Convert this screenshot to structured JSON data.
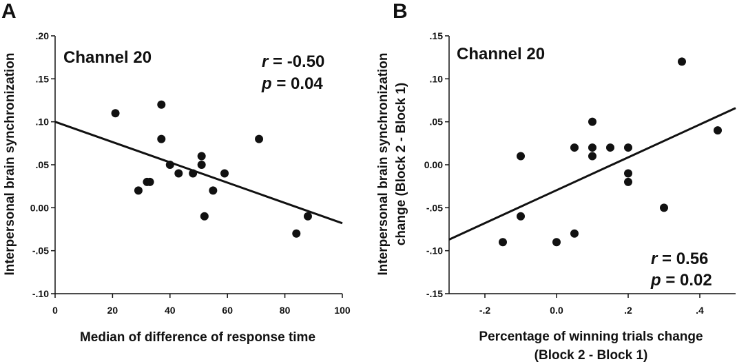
{
  "chart_data": [
    {
      "type": "scatter",
      "panel": "A",
      "title": "",
      "annotation": "Channel 20",
      "stat_r_label": "r",
      "stat_r_value": " = -0.50",
      "stat_p_label": "p",
      "stat_p_value": " = 0.04",
      "xlabel": "Median of difference of response time",
      "ylabel": "Interpersonal brain synchronization",
      "xlim": [
        0,
        100
      ],
      "ylim": [
        -0.1,
        0.2
      ],
      "x_ticks": [
        0,
        20,
        40,
        60,
        80,
        100
      ],
      "x_tick_labels": [
        "0",
        "20",
        "40",
        "60",
        "80",
        "100"
      ],
      "y_ticks": [
        -0.1,
        -0.05,
        0.0,
        0.05,
        0.1,
        0.15,
        0.2
      ],
      "y_tick_labels": [
        "-.10",
        "-.05",
        "0.00",
        ".05",
        ".10",
        ".15",
        ".20"
      ],
      "grid": false,
      "points": {
        "x": [
          21,
          29,
          32,
          33,
          37,
          37,
          40,
          43,
          48,
          51,
          51,
          52,
          55,
          59,
          71,
          84,
          88
        ],
        "y": [
          0.11,
          0.02,
          0.03,
          0.03,
          0.12,
          0.08,
          0.05,
          0.04,
          0.04,
          0.06,
          0.05,
          -0.01,
          0.02,
          0.04,
          0.08,
          -0.03,
          -0.01
        ]
      },
      "regression_line": {
        "x": [
          0,
          100
        ],
        "y": [
          0.1,
          -0.018
        ]
      }
    },
    {
      "type": "scatter",
      "panel": "B",
      "title": "",
      "annotation": "Channel 20",
      "stat_r_label": "r",
      "stat_r_value": " = 0.56",
      "stat_p_label": "p",
      "stat_p_value": " = 0.02",
      "xlabel_line1": "Percentage of winning trials change",
      "xlabel_line2": "(Block 2 - Block 1)",
      "ylabel_line1": "Interpersonal brain synchronization",
      "ylabel_line2": "change (Block 2 - Block 1)",
      "xlim": [
        -0.3,
        0.5
      ],
      "ylim": [
        -0.15,
        0.15
      ],
      "x_ticks": [
        -0.2,
        0.0,
        0.2,
        0.4
      ],
      "x_tick_labels": [
        "-.2",
        "0.0",
        ".2",
        ".4"
      ],
      "y_ticks": [
        -0.15,
        -0.1,
        -0.05,
        0.0,
        0.05,
        0.1,
        0.15
      ],
      "y_tick_labels": [
        "-.15",
        "-.10",
        "-.05",
        "0.00",
        ".05",
        ".10",
        ".15"
      ],
      "grid": false,
      "points": {
        "x": [
          -0.15,
          -0.1,
          -0.1,
          0.0,
          0.05,
          0.05,
          0.1,
          0.1,
          0.1,
          0.15,
          0.2,
          0.2,
          0.2,
          0.3,
          0.35,
          0.45
        ],
        "y": [
          -0.09,
          -0.06,
          0.01,
          -0.09,
          -0.08,
          0.02,
          0.05,
          0.02,
          0.01,
          0.02,
          0.02,
          -0.01,
          -0.02,
          -0.05,
          0.12,
          0.04
        ]
      },
      "regression_line": {
        "x": [
          -0.3,
          0.5
        ],
        "y": [
          -0.087,
          0.066
        ]
      }
    }
  ]
}
